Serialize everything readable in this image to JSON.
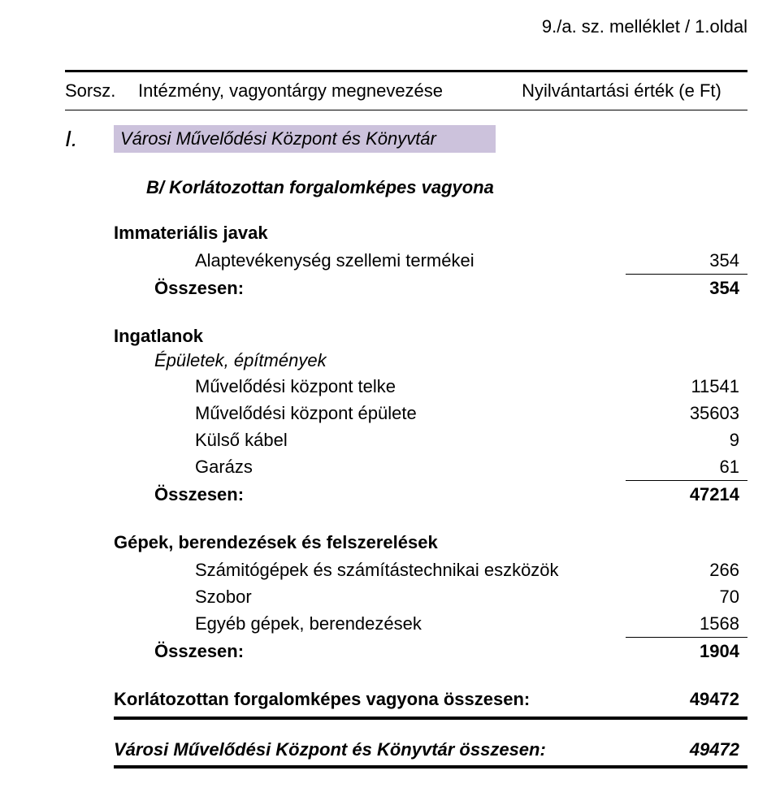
{
  "header_right": "9./a. sz. melléklet / 1.oldal",
  "columns": {
    "sorsz": "Sorsz.",
    "name": "Intézmény, vagyontárgy megnevezése",
    "value": "Nyilvántartási érték (e Ft)"
  },
  "section": {
    "num": "I.",
    "title": "Városi Művelődési Központ és Könyvtár",
    "title_bg": "#ccc2dc",
    "subhead": "B/ Korlátozottan forgalomképes vagyona"
  },
  "blocks": [
    {
      "title": "Immateriális javak",
      "subtitle": null,
      "items": [
        {
          "label": "Alaptevékenység szellemi termékei",
          "value": "354"
        }
      ],
      "sum_label": "Összesen:",
      "sum_value": "354"
    },
    {
      "title": "Ingatlanok",
      "subtitle": "Épületek, építmények",
      "items": [
        {
          "label": "Művelődési központ telke",
          "value": "11541"
        },
        {
          "label": "Művelődési központ épülete",
          "value": "35603"
        },
        {
          "label": "Külső kábel",
          "value": "9"
        },
        {
          "label": "Garázs",
          "value": "61"
        }
      ],
      "sum_label": "Összesen:",
      "sum_value": "47214"
    },
    {
      "title": "Gépek, berendezések és felszerelések",
      "subtitle": null,
      "items": [
        {
          "label": "Számitógépek és számítástechnikai eszközök",
          "value": "266"
        },
        {
          "label": "Szobor",
          "value": "70"
        },
        {
          "label": "Egyéb gépek, berendezések",
          "value": "1568"
        }
      ],
      "sum_label": "Összesen:",
      "sum_value": "1904"
    }
  ],
  "total": {
    "label": "Korlátozottan forgalomképes vagyona összesen:",
    "value": "49472"
  },
  "grand": {
    "label": "Városi Művelődési Központ és Könyvtár összesen:",
    "value": "49472"
  }
}
